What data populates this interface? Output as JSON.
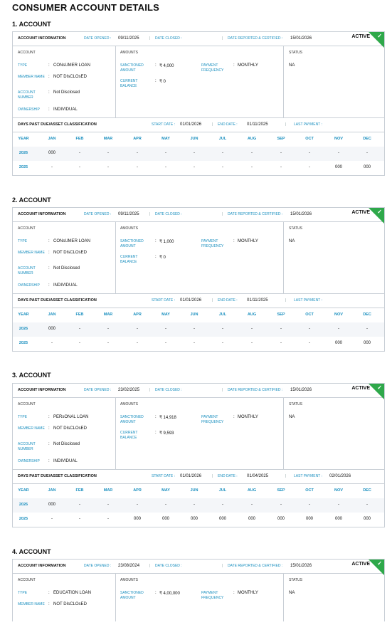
{
  "page_title": "CONSUMER ACCOUNT DETAILS",
  "labels": {
    "account_information": "ACCOUNT INFORMATION",
    "date_opened": "DATE OPENED :",
    "date_closed": "DATE CLOSED :",
    "date_reported": "DATE REPORTED & CERTIFIED :",
    "col_account": "ACCOUNT",
    "col_amounts": "AMOUNTS",
    "col_status": "STATUS",
    "type": "TYPE",
    "member_name": "MEMBER NAME",
    "account_number": "ACCOUNT NUMBER",
    "ownership": "OWNERSHIP",
    "sanctioned_amount": "SANCTIONED AMOUNT",
    "current_balance": "CURRENT BALANCE",
    "payment_frequency": "PAYMENT FREQUENCY",
    "dpd_title": "DAYS PAST DUE/ASSET CLASSIFICATION",
    "start_date": "START DATE :",
    "end_date": "END DATE :",
    "last_payment": "LAST PAYMENT :",
    "year": "YEAR",
    "months": [
      "JAN",
      "FEB",
      "MAR",
      "APR",
      "MAY",
      "JUN",
      "JUL",
      "AUG",
      "SEP",
      "OCT",
      "NOV",
      "DEC"
    ]
  },
  "accounts": [
    {
      "heading": "1. ACCOUNT",
      "date_opened": "09/11/2025",
      "date_closed": "",
      "date_reported": "15/01/2026",
      "status_tag": "ACTIVE",
      "type": "CONsUMER LOAN",
      "member_name": "NOT DIsCLOsED",
      "account_number": "Not Disclosed",
      "ownership": "INDIVIDUAL",
      "sanctioned_amount": "₹ 4,000",
      "current_balance": "₹ 0",
      "payment_frequency": "MONTHLY",
      "status": "NA",
      "start_date": "01/01/2026",
      "end_date": "01/11/2025",
      "last_payment": "",
      "rows": [
        {
          "year": "2026",
          "values": [
            "000",
            "-",
            "-",
            "-",
            "-",
            "-",
            "-",
            "-",
            "-",
            "-",
            "-",
            "-"
          ]
        },
        {
          "year": "2025",
          "values": [
            "-",
            "-",
            "-",
            "-",
            "-",
            "-",
            "-",
            "-",
            "-",
            "-",
            "000",
            "000"
          ]
        }
      ]
    },
    {
      "heading": "2. ACCOUNT",
      "date_opened": "09/11/2025",
      "date_closed": "",
      "date_reported": "15/01/2026",
      "status_tag": "ACTIVE",
      "type": "CONsUMER LOAN",
      "member_name": "NOT DIsCLOsED",
      "account_number": "Not Disclosed",
      "ownership": "INDIVIDUAL",
      "sanctioned_amount": "₹ 1,000",
      "current_balance": "₹ 0",
      "payment_frequency": "MONTHLY",
      "status": "NA",
      "start_date": "01/01/2026",
      "end_date": "01/11/2025",
      "last_payment": "",
      "rows": [
        {
          "year": "2026",
          "values": [
            "000",
            "-",
            "-",
            "-",
            "-",
            "-",
            "-",
            "-",
            "-",
            "-",
            "-",
            "-"
          ]
        },
        {
          "year": "2025",
          "values": [
            "-",
            "-",
            "-",
            "-",
            "-",
            "-",
            "-",
            "-",
            "-",
            "-",
            "000",
            "000"
          ]
        }
      ]
    },
    {
      "heading": "3. ACCOUNT",
      "date_opened": "23/02/2025",
      "date_closed": "",
      "date_reported": "15/01/2026",
      "status_tag": "ACTIVE",
      "type": "PERsONAL LOAN",
      "member_name": "NOT DIsCLOsED",
      "account_number": "Not Disclosed",
      "ownership": "INDIVIDUAL",
      "sanctioned_amount": "₹ 14,918",
      "current_balance": "₹ 9,593",
      "payment_frequency": "MONTHLY",
      "status": "NA",
      "start_date": "01/01/2026",
      "end_date": "01/04/2025",
      "last_payment": "02/01/2026",
      "rows": [
        {
          "year": "2026",
          "values": [
            "000",
            "-",
            "-",
            "-",
            "-",
            "-",
            "-",
            "-",
            "-",
            "-",
            "-",
            "-"
          ]
        },
        {
          "year": "2025",
          "values": [
            "-",
            "-",
            "-",
            "000",
            "000",
            "000",
            "000",
            "000",
            "000",
            "000",
            "000",
            "000"
          ]
        }
      ]
    },
    {
      "heading": "4. ACCOUNT",
      "date_opened": "23/08/2024",
      "date_closed": "",
      "date_reported": "15/01/2026",
      "status_tag": "ACTIVE",
      "type": "EDUCATION LOAN",
      "member_name": "NOT DIsCLOsED",
      "sanctioned_amount": "₹ 4,00,000",
      "payment_frequency": "MONTHLY",
      "status": "NA"
    }
  ]
}
